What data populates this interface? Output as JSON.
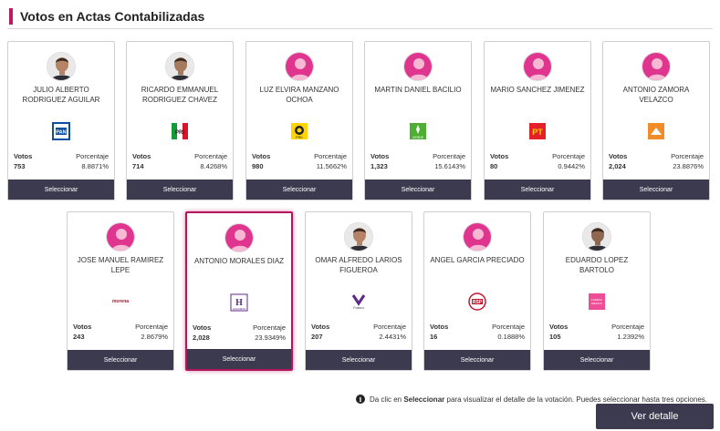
{
  "header": {
    "title": "Votos en Actas Contabilizadas"
  },
  "labels": {
    "votos": "Votos",
    "porcentaje": "Porcentaje",
    "select": "Seleccionar"
  },
  "candidates": [
    {
      "name": "JULIO ALBERTO RODRIGUEZ AGUILAR",
      "votes": "753",
      "pct": "8.8871%",
      "party": "PAN",
      "photo": "photo"
    },
    {
      "name": "RICARDO EMMANUEL RODRIGUEZ CHAVEZ",
      "votes": "714",
      "pct": "8.4268%",
      "party": "PRI",
      "photo": "photo"
    },
    {
      "name": "LUZ ELVIRA MANZANO OCHOA",
      "votes": "980",
      "pct": "11.5662%",
      "party": "PRD",
      "photo": "placeholder"
    },
    {
      "name": "MARTIN DANIEL BACILIO",
      "votes": "1,323",
      "pct": "15.6143%",
      "party": "VERDE",
      "photo": "placeholder"
    },
    {
      "name": "MARIO SANCHEZ JIMENEZ",
      "votes": "80",
      "pct": "0.9442%",
      "party": "PT",
      "photo": "placeholder"
    },
    {
      "name": "ANTONIO ZAMORA VELAZCO",
      "votes": "2,024",
      "pct": "23.8876%",
      "party": "MC",
      "photo": "placeholder"
    },
    {
      "name": "JOSE MANUEL RAMIREZ LEPE",
      "votes": "243",
      "pct": "2.8679%",
      "party": "morena",
      "photo": "placeholder"
    },
    {
      "name": "ANTONIO MORALES DIAZ",
      "votes": "2,028",
      "pct": "23.9349%",
      "party": "HAGAMOS",
      "photo": "placeholder",
      "selected": true
    },
    {
      "name": "OMAR ALFREDO LARIOS FIGUEROA",
      "votes": "207",
      "pct": "2.4431%",
      "party": "Futuro",
      "photo": "photo"
    },
    {
      "name": "ANGEL GARCIA PRECIADO",
      "votes": "16",
      "pct": "0.1888%",
      "party": "RSP",
      "photo": "placeholder"
    },
    {
      "name": "EDUARDO LOPEZ BARTOLO",
      "votes": "105",
      "pct": "1.2392%",
      "party": "FUERZA MEXICO",
      "photo": "photo"
    }
  ],
  "info": {
    "icon": "info-icon",
    "before": "Da clic en",
    "bold": "Seleccionar",
    "after": "para visualizar el detalle de la votación. Puedes seleccionar hasta tres opciones."
  },
  "ver_detalle": "Ver detalle",
  "colors": {
    "accent": "#c2185b",
    "dark": "#3c3a4f",
    "placeholder": "#e0358f"
  }
}
